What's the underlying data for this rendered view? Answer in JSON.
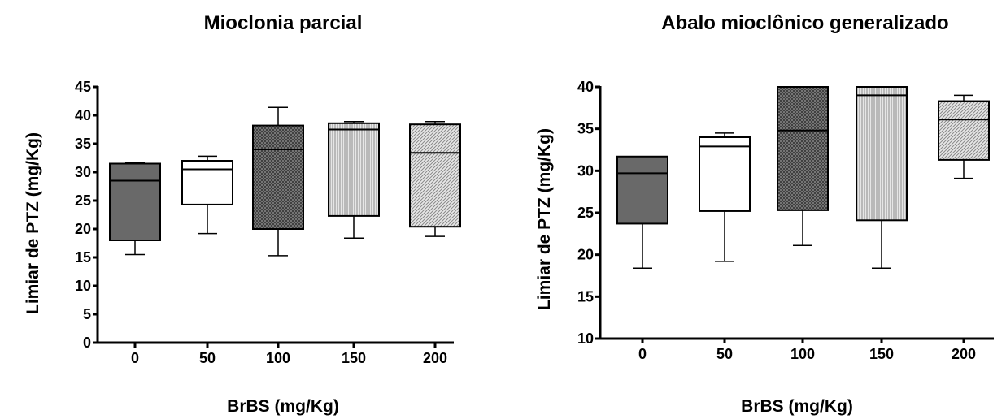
{
  "chart_data": [
    {
      "type": "box",
      "title": "Mioclonia parcial",
      "xlabel": "BrBS (mg/Kg)",
      "ylabel": "Limiar de PTZ (mg/Kg)",
      "categories": [
        "0",
        "50",
        "100",
        "150",
        "200"
      ],
      "ylim": [
        0,
        45
      ],
      "yticks": [
        0,
        5,
        10,
        15,
        20,
        25,
        30,
        35,
        40,
        45
      ],
      "grid": false,
      "boxes": [
        {
          "category": "0",
          "min": 15.5,
          "q1": 18.0,
          "median": 28.5,
          "q3": 31.5,
          "max": 31.7,
          "fill": "dark-gray"
        },
        {
          "category": "50",
          "min": 19.2,
          "q1": 24.3,
          "median": 30.5,
          "q3": 32.0,
          "max": 32.8,
          "fill": "white"
        },
        {
          "category": "100",
          "min": 15.3,
          "q1": 20.0,
          "median": 34.0,
          "q3": 38.2,
          "max": 41.4,
          "fill": "crosshatch"
        },
        {
          "category": "150",
          "min": 18.4,
          "q1": 22.3,
          "median": 37.5,
          "q3": 38.6,
          "max": 38.9,
          "fill": "vertical-lines"
        },
        {
          "category": "200",
          "min": 18.7,
          "q1": 20.4,
          "median": 33.4,
          "q3": 38.4,
          "max": 38.9,
          "fill": "diagonal-lines"
        }
      ]
    },
    {
      "type": "box",
      "title": "Abalo mioclônico generalizado",
      "xlabel": "BrBS (mg/Kg)",
      "ylabel": "Limiar de PTZ (mg/Kg)",
      "categories": [
        "0",
        "50",
        "100",
        "150",
        "200"
      ],
      "ylim": [
        10,
        40
      ],
      "yticks": [
        10,
        15,
        20,
        25,
        30,
        35,
        40
      ],
      "grid": false,
      "boxes": [
        {
          "category": "0",
          "min": 18.4,
          "q1": 23.7,
          "median": 29.7,
          "q3": 31.7,
          "max": 31.7,
          "fill": "dark-gray"
        },
        {
          "category": "50",
          "min": 19.2,
          "q1": 25.2,
          "median": 32.9,
          "q3": 34.0,
          "max": 34.5,
          "fill": "white"
        },
        {
          "category": "100",
          "min": 21.1,
          "q1": 25.3,
          "median": 34.8,
          "q3": 40.0,
          "max": 40.0,
          "fill": "crosshatch"
        },
        {
          "category": "150",
          "min": 18.4,
          "q1": 24.1,
          "median": 39.0,
          "q3": 40.0,
          "max": 40.0,
          "fill": "vertical-lines"
        },
        {
          "category": "200",
          "min": 29.1,
          "q1": 31.3,
          "median": 36.1,
          "q3": 38.3,
          "max": 39.0,
          "fill": "diagonal-lines"
        }
      ]
    }
  ]
}
